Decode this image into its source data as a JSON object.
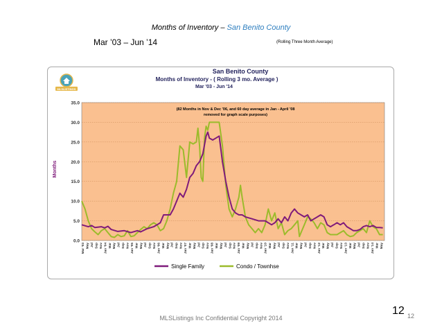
{
  "slide": {
    "title_main": "Months of Inventory",
    "title_sep": " – ",
    "title_county": "San Benito County",
    "subtitle": "Mar ’03 – Jun ’14",
    "note": "(Rolling Three Month Average)",
    "footer": "MLSListings Inc Confidential Copyright 2014",
    "page_big": "12",
    "page_small": "12"
  },
  "colors": {
    "plot_bg": "#fac090",
    "single_family": "#7f1a7a",
    "condo": "#9bbb2b",
    "ylabel": "#7f1a7a",
    "title_county": "#2f7fbf"
  },
  "chart_data": {
    "type": "line",
    "title": "San Benito County",
    "subtitle_line1": "Months of Inventory - ( Rolling 3 mo. Average )",
    "subtitle_line2": "Mar '03 - Jun '14",
    "annotation_line1": "(82 Months in Nov & Dec '06, and 60 day average in Jan - April '08",
    "annotation_line2": "removed for graph scale purposes)",
    "ylabel": "Months",
    "ylim": [
      0,
      35
    ],
    "yticks": [
      "0.0",
      "5.0",
      "10.0",
      "15.0",
      "20.0",
      "25.0",
      "30.0",
      "35.0"
    ],
    "grid": true,
    "legend_position": "bottom",
    "x_start": "Mar '03",
    "x_end": "Jun '14",
    "x_labels": [
      "Mar '03",
      "May",
      "Jul",
      "Sep",
      "Nov",
      "Jan '04",
      "Mar",
      "May",
      "Jul",
      "Sep",
      "Nov",
      "Jan '05",
      "Mar",
      "May",
      "Jul",
      "Sep",
      "Nov",
      "Jan '06",
      "Mar",
      "May",
      "Jul",
      "Sep",
      "Nov",
      "Jan '07",
      "Mar",
      "May",
      "Jul",
      "Sep",
      "Nov",
      "Jan '08",
      "Mar",
      "May",
      "Jul",
      "Sep",
      "Nov",
      "Jan '09",
      "Mar",
      "May",
      "Jul",
      "Sep",
      "Nov",
      "Jan '10",
      "Mar",
      "May",
      "Jul",
      "Sep",
      "Nov",
      "Jan '11",
      "Mar",
      "May",
      "Jul",
      "Sep",
      "Nov",
      "Jan '12",
      "Mar",
      "May",
      "Jul",
      "Sep",
      "Nov",
      "Jan '13",
      "Mar",
      "May",
      "Jul",
      "Sep",
      "Nov",
      "Jan '14",
      "Mar",
      "May"
    ],
    "series": [
      {
        "name": "Single Family",
        "points": [
          [
            0,
            4.0
          ],
          [
            4,
            3.5
          ],
          [
            6,
            3.8
          ],
          [
            8,
            3.3
          ],
          [
            12,
            3.5
          ],
          [
            14,
            3.2
          ],
          [
            16,
            3.6
          ],
          [
            18,
            2.8
          ],
          [
            22,
            2.3
          ],
          [
            26,
            2.5
          ],
          [
            30,
            2.0
          ],
          [
            34,
            2.5
          ],
          [
            36,
            2.2
          ],
          [
            40,
            3.0
          ],
          [
            44,
            3.5
          ],
          [
            46,
            4.0
          ],
          [
            48,
            4.5
          ],
          [
            50,
            6.5
          ],
          [
            52,
            6.5
          ],
          [
            54,
            6.5
          ],
          [
            56,
            8.0
          ],
          [
            58,
            10.0
          ],
          [
            60,
            12.0
          ],
          [
            62,
            11.0
          ],
          [
            64,
            13.0
          ],
          [
            66,
            16.0
          ],
          [
            68,
            17.0
          ],
          [
            70,
            19.0
          ],
          [
            72,
            20.0
          ],
          [
            74,
            22.0
          ],
          [
            76,
            26.5
          ],
          [
            77,
            27.5
          ],
          [
            78,
            26.0
          ],
          [
            80,
            25.5
          ],
          [
            82,
            26.0
          ],
          [
            84,
            26.5
          ],
          [
            86,
            20.0
          ],
          [
            88,
            15.0
          ],
          [
            90,
            11.0
          ],
          [
            92,
            8.0
          ],
          [
            94,
            7.0
          ],
          [
            96,
            6.5
          ],
          [
            98,
            6.5
          ],
          [
            100,
            6.0
          ],
          [
            104,
            5.5
          ],
          [
            108,
            5.0
          ],
          [
            112,
            5.0
          ],
          [
            114,
            4.5
          ],
          [
            116,
            4.0
          ],
          [
            118,
            4.5
          ],
          [
            120,
            5.5
          ],
          [
            122,
            4.5
          ],
          [
            124,
            6.0
          ],
          [
            126,
            5.0
          ],
          [
            128,
            7.0
          ],
          [
            130,
            8.0
          ],
          [
            132,
            7.0
          ],
          [
            134,
            6.5
          ],
          [
            136,
            6.0
          ],
          [
            138,
            6.5
          ],
          [
            140,
            5.0
          ],
          [
            142,
            5.5
          ],
          [
            144,
            6.0
          ],
          [
            146,
            6.5
          ],
          [
            148,
            6.0
          ],
          [
            150,
            4.0
          ],
          [
            152,
            3.5
          ],
          [
            154,
            4.0
          ],
          [
            156,
            4.5
          ],
          [
            158,
            4.0
          ],
          [
            160,
            4.5
          ],
          [
            162,
            3.5
          ],
          [
            164,
            3.0
          ],
          [
            166,
            2.5
          ],
          [
            168,
            2.5
          ],
          [
            170,
            2.8
          ],
          [
            172,
            3.5
          ],
          [
            174,
            3.8
          ],
          [
            176,
            3.5
          ],
          [
            178,
            3.8
          ],
          [
            180,
            3.3
          ],
          [
            182,
            3.3
          ],
          [
            184,
            3.2
          ]
        ]
      },
      {
        "name": "Condo / Townhse",
        "points": [
          [
            0,
            10.0
          ],
          [
            2,
            8.0
          ],
          [
            4,
            5.0
          ],
          [
            6,
            3.0
          ],
          [
            8,
            2.2
          ],
          [
            10,
            1.5
          ],
          [
            12,
            2.5
          ],
          [
            14,
            3.0
          ],
          [
            16,
            2.0
          ],
          [
            18,
            1.0
          ],
          [
            20,
            0.8
          ],
          [
            22,
            1.5
          ],
          [
            24,
            1.0
          ],
          [
            26,
            1.2
          ],
          [
            28,
            2.5
          ],
          [
            30,
            1.0
          ],
          [
            32,
            1.2
          ],
          [
            34,
            2.0
          ],
          [
            36,
            2.8
          ],
          [
            38,
            3.5
          ],
          [
            40,
            3.0
          ],
          [
            42,
            4.0
          ],
          [
            44,
            4.5
          ],
          [
            46,
            4.0
          ],
          [
            48,
            2.5
          ],
          [
            50,
            3.0
          ],
          [
            52,
            5.0
          ],
          [
            54,
            8.0
          ],
          [
            56,
            12.0
          ],
          [
            58,
            15.0
          ],
          [
            60,
            24.0
          ],
          [
            62,
            23.0
          ],
          [
            64,
            16.0
          ],
          [
            66,
            25.0
          ],
          [
            68,
            24.5
          ],
          [
            70,
            25.0
          ],
          [
            71,
            28.5
          ],
          [
            72,
            24.0
          ],
          [
            73,
            16.0
          ],
          [
            74,
            15.0
          ],
          [
            75,
            26.0
          ],
          [
            76,
            29.0
          ],
          [
            77,
            28.0
          ],
          [
            78,
            30.0
          ],
          [
            80,
            30.0
          ],
          [
            82,
            30.0
          ],
          [
            84,
            30.0
          ],
          [
            86,
            24.0
          ],
          [
            88,
            14.0
          ],
          [
            90,
            8.0
          ],
          [
            92,
            6.0
          ],
          [
            94,
            8.0
          ],
          [
            96,
            11.0
          ],
          [
            97,
            14.0
          ],
          [
            98,
            11.0
          ],
          [
            100,
            6.0
          ],
          [
            102,
            4.0
          ],
          [
            104,
            3.0
          ],
          [
            106,
            2.0
          ],
          [
            108,
            3.0
          ],
          [
            110,
            2.0
          ],
          [
            112,
            4.0
          ],
          [
            114,
            8.0
          ],
          [
            116,
            5.0
          ],
          [
            118,
            7.0
          ],
          [
            120,
            3.0
          ],
          [
            122,
            4.5
          ],
          [
            124,
            1.5
          ],
          [
            126,
            2.5
          ],
          [
            128,
            3.0
          ],
          [
            130,
            4.0
          ],
          [
            132,
            5.0
          ],
          [
            133,
            1.0
          ],
          [
            134,
            2.0
          ],
          [
            136,
            4.0
          ],
          [
            138,
            6.0
          ],
          [
            140,
            5.5
          ],
          [
            142,
            4.5
          ],
          [
            144,
            3.0
          ],
          [
            146,
            4.5
          ],
          [
            148,
            4.0
          ],
          [
            150,
            2.0
          ],
          [
            152,
            1.5
          ],
          [
            154,
            1.5
          ],
          [
            156,
            1.5
          ],
          [
            158,
            2.0
          ],
          [
            160,
            2.5
          ],
          [
            162,
            1.5
          ],
          [
            164,
            1.0
          ],
          [
            166,
            1.2
          ],
          [
            168,
            2.0
          ],
          [
            170,
            2.5
          ],
          [
            172,
            3.0
          ],
          [
            174,
            2.0
          ],
          [
            176,
            5.0
          ],
          [
            178,
            3.5
          ],
          [
            180,
            3.0
          ],
          [
            182,
            1.5
          ],
          [
            184,
            1.5
          ]
        ]
      }
    ]
  }
}
